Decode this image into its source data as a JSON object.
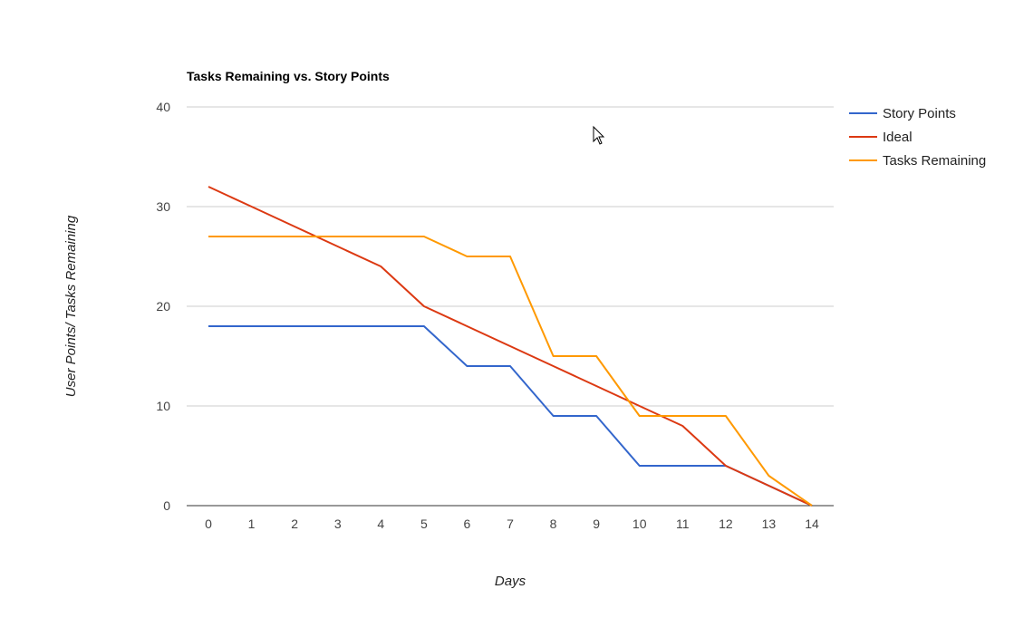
{
  "chart_data": {
    "type": "line",
    "title": "Tasks Remaining vs. Story Points",
    "xlabel": "Days",
    "ylabel": "User Points/ Tasks Remaining",
    "categories": [
      "0",
      "1",
      "2",
      "3",
      "4",
      "5",
      "6",
      "7",
      "8",
      "9",
      "10",
      "11",
      "12",
      "13",
      "14"
    ],
    "x": [
      0,
      1,
      2,
      3,
      4,
      5,
      6,
      7,
      8,
      9,
      10,
      11,
      12,
      13,
      14
    ],
    "ylim": [
      0,
      40
    ],
    "yticks": [
      0,
      10,
      20,
      30,
      40
    ],
    "grid": true,
    "legend_position": "right",
    "series": [
      {
        "name": "Story Points",
        "color": "#3366cc",
        "values": [
          18,
          18,
          18,
          18,
          18,
          18,
          14,
          14,
          9,
          9,
          4,
          4,
          4,
          2,
          0
        ]
      },
      {
        "name": "Ideal",
        "color": "#dc3912",
        "values": [
          32,
          30,
          28,
          26,
          24,
          20,
          18,
          16,
          14,
          12,
          10,
          8,
          4,
          2,
          0
        ]
      },
      {
        "name": "Tasks Remaining",
        "color": "#ff9900",
        "values": [
          27,
          27,
          27,
          27,
          27,
          27,
          25,
          25,
          15,
          15,
          9,
          9,
          9,
          3,
          0
        ]
      }
    ]
  }
}
